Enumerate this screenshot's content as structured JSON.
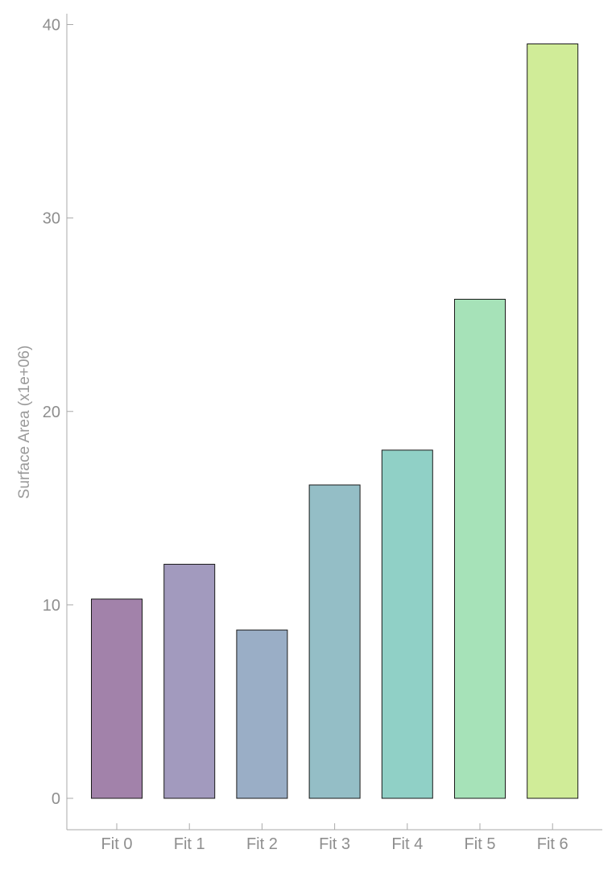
{
  "chart_data": {
    "type": "bar",
    "title": "",
    "xlabel": "",
    "ylabel": "Surface Area (x1e+06)",
    "categories": [
      "Fit 0",
      "Fit 1",
      "Fit 2",
      "Fit 3",
      "Fit 4",
      "Fit 5",
      "Fit 6"
    ],
    "values": [
      10.3,
      12.1,
      8.7,
      16.2,
      18.0,
      25.8,
      39.0
    ],
    "colors": [
      "#a282aa",
      "#a29abe",
      "#9aaec6",
      "#94bec6",
      "#90d0c6",
      "#a6e2b8",
      "#d0ec98"
    ],
    "yticks": [
      0,
      10,
      20,
      30,
      40
    ],
    "ylim": [
      -1.6,
      40.6
    ],
    "grid": false,
    "legend": "none"
  }
}
